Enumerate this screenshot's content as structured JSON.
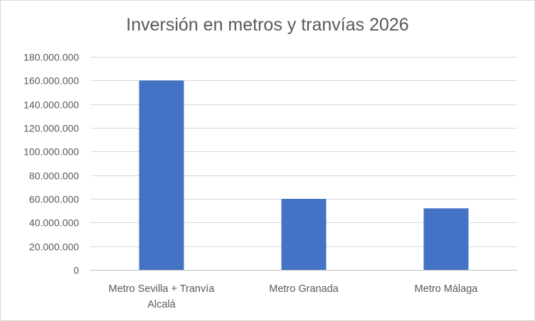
{
  "chart_data": {
    "type": "bar",
    "title": "Inversión en metros y tranvías 2026",
    "categories": [
      [
        "Metro Sevilla + Tranvía",
        "Alcalá"
      ],
      [
        "Metro Granada"
      ],
      [
        "Metro Málaga"
      ]
    ],
    "values": [
      160000000,
      60000000,
      52000000
    ],
    "ylim": [
      0,
      180000000
    ],
    "y_ticks": [
      0,
      20000000,
      40000000,
      60000000,
      80000000,
      100000000,
      120000000,
      140000000,
      160000000,
      180000000
    ],
    "y_tick_labels": [
      "0",
      "20.000.000",
      "40.000.000",
      "60.000.000",
      "80.000.000",
      "100.000.000",
      "120.000.000",
      "140.000.000",
      "160.000.000",
      "180.000.000"
    ],
    "bar_color": "#4472c4",
    "grid": true,
    "legend": "none"
  }
}
